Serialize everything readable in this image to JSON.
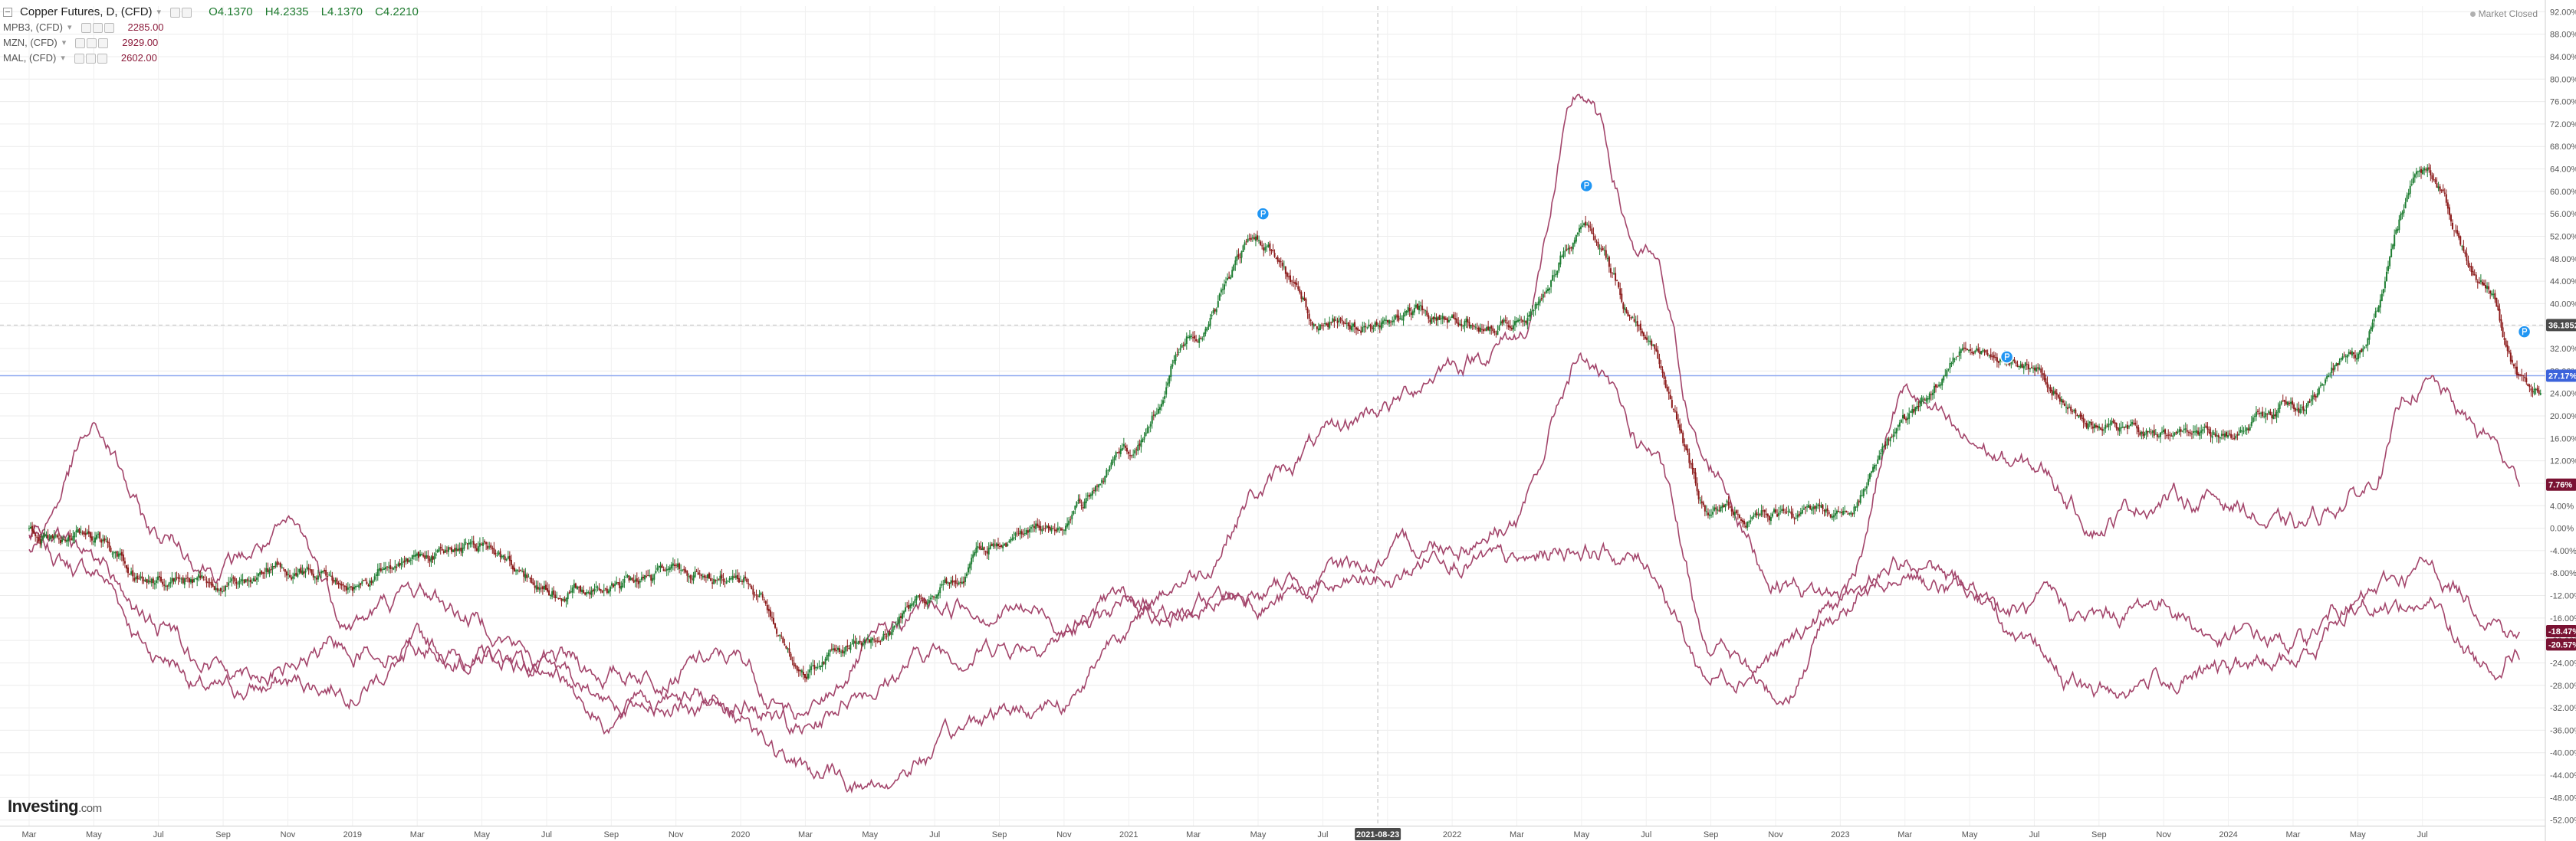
{
  "legend": {
    "main": {
      "symbol": "Copper Futures, D, (CFD)",
      "caret": "▾",
      "o": "O4.1370",
      "h": "H4.2335",
      "l": "L4.1370",
      "c": "C4.2210"
    },
    "series": [
      {
        "symbol": "MPB3, (CFD)",
        "caret": "▾",
        "value": "2285.00"
      },
      {
        "symbol": "MZN, (CFD)",
        "caret": "▾",
        "value": "2929.00"
      },
      {
        "symbol": "MAL, (CFD)",
        "caret": "▾",
        "value": "2602.00"
      }
    ]
  },
  "market_status": "Market Closed",
  "logo": {
    "main": "Investing",
    "suffix": ".com"
  },
  "crosshair_date": "2021-08-23",
  "badges": {
    "crosshair": "36.1852",
    "copper": "27.17%",
    "lead": "7.76%",
    "zinc": "-18.47%",
    "aluminium": "-20.57%"
  },
  "colors": {
    "bull": "#1e7d32",
    "bear": "#8b1a1a",
    "compare": "#a3456b",
    "line": "#4a6ee0"
  },
  "chart_data": {
    "type": "line",
    "ylim": [
      -53,
      93
    ],
    "y_ticks": [
      "92.00%",
      "88.00%",
      "84.00%",
      "80.00%",
      "76.00%",
      "72.00%",
      "68.00%",
      "64.00%",
      "60.00%",
      "56.00%",
      "52.00%",
      "48.00%",
      "44.00%",
      "40.00%",
      "36.00%",
      "32.00%",
      "28.00%",
      "24.00%",
      "20.00%",
      "16.00%",
      "12.00%",
      "8.00%",
      "4.00%",
      "0.00%",
      "-4.00%",
      "-8.00%",
      "-12.00%",
      "-16.00%",
      "-20.00%",
      "-24.00%",
      "-28.00%",
      "-32.00%",
      "-36.00%",
      "-40.00%",
      "-44.00%",
      "-48.00%",
      "-52.00%"
    ],
    "x_ticks": [
      "Mar",
      "May",
      "Jul",
      "Sep",
      "Nov",
      "2019",
      "Mar",
      "May",
      "Jul",
      "Sep",
      "Nov",
      "2020",
      "Mar",
      "May",
      "Jul",
      "Sep",
      "Nov",
      "2021",
      "Mar",
      "May",
      "Jul",
      "Nov",
      "2022",
      "Mar",
      "May",
      "Jul",
      "Sep",
      "Nov",
      "2023",
      "Mar",
      "May",
      "Jul",
      "Sep",
      "Nov",
      "2024",
      "Mar",
      "May",
      "Jul"
    ],
    "x_range": [
      "2018-03",
      "2024-08"
    ],
    "series": [
      {
        "type": "candlestick",
        "x": [
          "2018-03",
          "2018-05",
          "2018-07",
          "2018-09",
          "2018-11",
          "2019-01",
          "2019-03",
          "2019-05",
          "2019-07",
          "2019-09",
          "2019-11",
          "2020-01",
          "2020-03",
          "2020-05",
          "2020-07",
          "2020-09",
          "2020-11",
          "2021-01",
          "2021-03",
          "2021-05",
          "2021-07",
          "2021-09",
          "2021-11",
          "2022-01",
          "2022-03",
          "2022-05",
          "2022-07",
          "2022-09",
          "2022-11",
          "2023-01",
          "2023-03",
          "2023-05",
          "2023-07",
          "2023-09",
          "2023-11",
          "2024-01",
          "2024-03",
          "2024-05",
          "2024-07",
          "2024-08"
        ],
        "values": [
          0,
          -2,
          -9,
          -9,
          -7,
          -9,
          -5,
          -4,
          -10,
          -11,
          -10,
          -8,
          -25,
          -20,
          -10,
          -3,
          2,
          13,
          36,
          51,
          37,
          38,
          38,
          37,
          53,
          35,
          3,
          3,
          3,
          20,
          33,
          28,
          19,
          16,
          17,
          21,
          31,
          62,
          44,
          27
        ]
      },
      {
        "type": "line",
        "x": [
          "2018-03",
          "2018-05",
          "2018-07",
          "2018-09",
          "2018-11",
          "2019-01",
          "2019-03",
          "2019-05",
          "2019-07",
          "2019-09",
          "2019-11",
          "2020-01",
          "2020-03",
          "2020-05",
          "2020-07",
          "2020-09",
          "2020-11",
          "2021-01",
          "2021-03",
          "2021-05",
          "2021-07",
          "2021-09",
          "2021-11",
          "2022-01",
          "2022-03",
          "2022-05",
          "2022-07",
          "2022-09",
          "2022-11",
          "2023-01",
          "2023-03",
          "2023-05",
          "2023-07",
          "2023-09",
          "2023-11",
          "2024-01",
          "2024-03",
          "2024-05",
          "2024-07",
          "2024-08"
        ],
        "values": [
          -4,
          -8,
          -22,
          -30,
          -28,
          -27,
          -22,
          -23,
          -25,
          -26,
          -24,
          -24,
          -36,
          -27,
          -22,
          -20,
          -18,
          -14,
          -14,
          -12,
          -12,
          -10,
          -3,
          -8,
          -3,
          -6,
          -26,
          -22,
          -14,
          -8,
          -12,
          -15,
          -17,
          -13,
          -20,
          -21,
          -13,
          -8,
          -13,
          -18
        ]
      },
      {
        "type": "line",
        "x": [
          "2018-03",
          "2018-05",
          "2018-07",
          "2018-09",
          "2018-11",
          "2019-01",
          "2019-03",
          "2019-05",
          "2019-07",
          "2019-09",
          "2019-11",
          "2020-01",
          "2020-03",
          "2020-05",
          "2020-07",
          "2020-09",
          "2020-11",
          "2021-01",
          "2021-03",
          "2021-05",
          "2021-07",
          "2021-09",
          "2021-11",
          "2022-01",
          "2022-03",
          "2022-05",
          "2022-07",
          "2022-09",
          "2022-11",
          "2023-01",
          "2023-03",
          "2023-05",
          "2023-07",
          "2023-09",
          "2023-11",
          "2024-01",
          "2024-03",
          "2024-05",
          "2024-07",
          "2024-08"
        ],
        "values": [
          -2,
          16,
          -2,
          -6,
          -2,
          -16,
          -12,
          -16,
          -24,
          -33,
          -30,
          -31,
          -35,
          -22,
          -14,
          -13,
          -16,
          -15,
          -14,
          -12,
          -8,
          -6,
          -2,
          2,
          30,
          14,
          -20,
          -30,
          -14,
          -5,
          -10,
          -24,
          -30,
          -26,
          -26,
          -24,
          -12,
          -13,
          -24,
          -20
        ]
      },
      {
        "type": "line",
        "x": [
          "2018-03",
          "2018-05",
          "2018-07",
          "2018-09",
          "2018-11",
          "2019-01",
          "2019-03",
          "2019-05",
          "2019-07",
          "2019-09",
          "2019-11",
          "2020-01",
          "2020-03",
          "2020-05",
          "2020-07",
          "2020-09",
          "2020-11",
          "2021-01",
          "2021-03",
          "2021-05",
          "2021-07",
          "2021-09",
          "2021-11",
          "2022-01",
          "2022-03",
          "2022-05",
          "2022-07",
          "2022-09",
          "2022-11",
          "2023-01",
          "2023-03",
          "2023-05",
          "2023-07",
          "2023-09",
          "2023-11",
          "2024-01",
          "2024-03",
          "2024-05",
          "2024-07",
          "2024-08"
        ],
        "values": [
          -2,
          -6,
          -18,
          -24,
          -24,
          -21,
          -20,
          -22,
          -26,
          -30,
          -30,
          -33,
          -44,
          -46,
          -40,
          -33,
          -30,
          -16,
          -8,
          7,
          15,
          22,
          30,
          34,
          76,
          48,
          10,
          -8,
          -12,
          24,
          14,
          10,
          2,
          6,
          5,
          -1,
          6,
          26,
          16,
          8
        ]
      }
    ],
    "grid": true,
    "legend": "top-left",
    "scale": "percent"
  }
}
